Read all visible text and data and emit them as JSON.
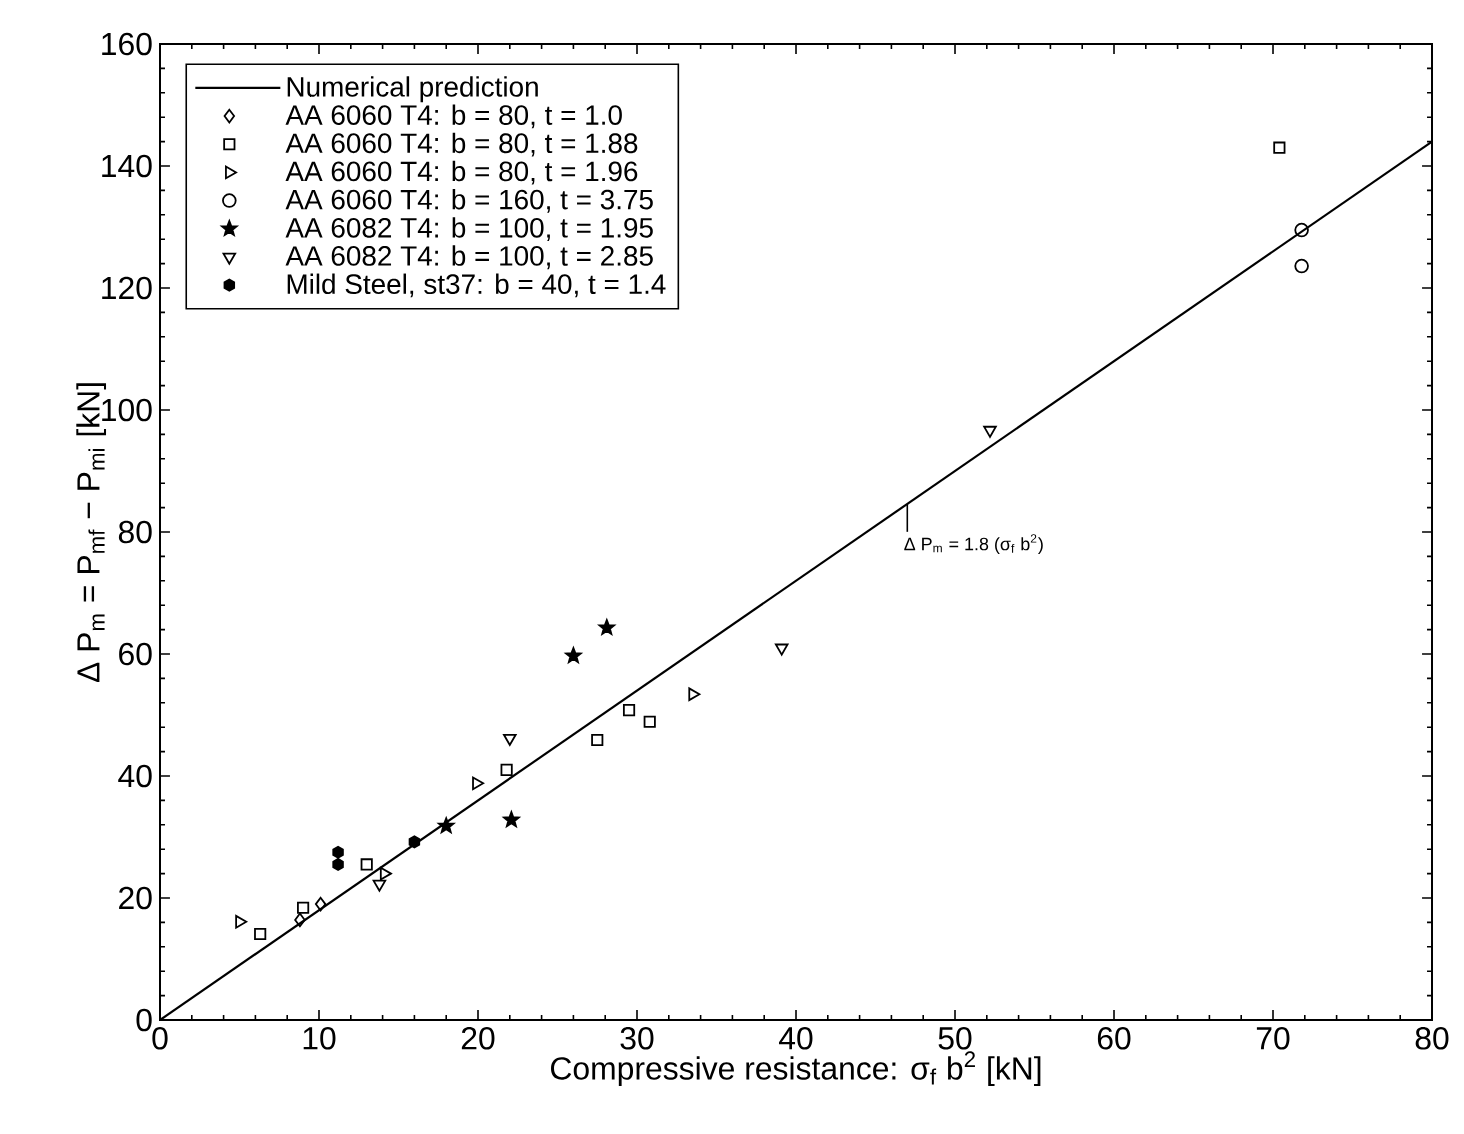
{
  "chart_data": {
    "type": "scatter",
    "xlabel": "Compressive resistance: σ$_{f}$ b$^{2}$  [kN]",
    "ylabel": "Δ P$_{m}$ = P$_{mf}$ − P$_{mi}$  [kN]",
    "xlim": [
      0,
      80
    ],
    "xticks": [
      0,
      10,
      20,
      30,
      40,
      50,
      60,
      70,
      80
    ],
    "ylim": [
      0,
      160
    ],
    "yticks": [
      0,
      20,
      40,
      60,
      80,
      100,
      120,
      140,
      160
    ],
    "legend": "top left",
    "grid": false,
    "annotations": [
      {
        "text": "Δ P$_{m}$ = 1.8 (σ$_{f}$ b$^{2}$)",
        "x": 47,
        "y": 84.6
      }
    ],
    "series": [
      {
        "name": "Numerical prediction",
        "type": "line",
        "marker": "none",
        "line_style": "solid",
        "color": "#000000",
        "x": [
          0,
          80
        ],
        "values": [
          0,
          144
        ]
      },
      {
        "name": "AA 6060 T4: b = 80, t = 1.0",
        "marker": "diamond",
        "color": "#000000",
        "x": [
          8.8,
          10.1
        ],
        "values": [
          16.4,
          19.0
        ]
      },
      {
        "name": "AA 6060 T4: b = 80, t = 1.88",
        "marker": "square",
        "color": "#000000",
        "x": [
          6.3,
          9.0,
          13.0,
          21.8,
          27.5,
          29.5,
          30.8,
          70.4
        ],
        "values": [
          14.1,
          18.4,
          25.5,
          41,
          45.9,
          50.8,
          48.9,
          143
        ]
      },
      {
        "name": "AA 6060 T4: b = 80, t = 1.96",
        "marker": "triangle-right",
        "color": "#000000",
        "x": [
          5.0,
          14.1,
          19.9,
          33.5
        ],
        "values": [
          16.1,
          24.0,
          38.8,
          53.4
        ]
      },
      {
        "name": "AA 6060 T4: b = 160, t = 3.75",
        "marker": "circle",
        "color": "#000000",
        "x": [
          71.8,
          71.8
        ],
        "values": [
          129.5,
          123.6
        ]
      },
      {
        "name": "AA 6082 T4: b = 100, t = 1.95",
        "marker": "star",
        "color": "#000000",
        "x": [
          18.0,
          22.1,
          26.0,
          28.1
        ],
        "values": [
          31.8,
          32.8,
          59.7,
          64.3
        ]
      },
      {
        "name": "AA 6082 T4: b = 100, t = 2.85",
        "marker": "triangle-down",
        "color": "#000000",
        "x": [
          13.8,
          22.0,
          39.1,
          52.2
        ],
        "values": [
          22.3,
          46.2,
          61,
          96.7
        ]
      },
      {
        "name": "Mild Steel, st37: b = 40, t = 1.4",
        "color": "#000000",
        "x": [
          11.2,
          11.2,
          16.0
        ],
        "values": [
          27.5,
          25.5,
          29.2
        ]
      }
    ]
  }
}
